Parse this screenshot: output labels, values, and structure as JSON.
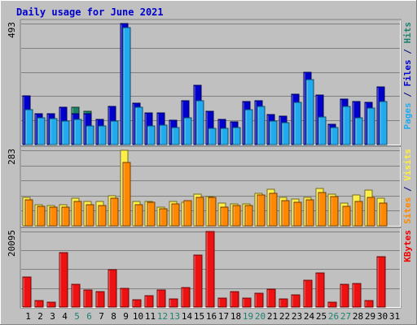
{
  "chart_data": {
    "type": "bar",
    "title": "Daily usage for June 2021",
    "days": [
      "1",
      "2",
      "3",
      "4",
      "5",
      "6",
      "7",
      "8",
      "9",
      "10",
      "11",
      "12",
      "13",
      "14",
      "15",
      "16",
      "17",
      "18",
      "19",
      "20",
      "21",
      "22",
      "23",
      "24",
      "25",
      "26",
      "27",
      "28",
      "29",
      "30",
      "31"
    ],
    "weekend_days": [
      "5",
      "6",
      "12",
      "13",
      "19",
      "20",
      "26",
      "27"
    ],
    "panels": [
      {
        "id": "pages-files-hits",
        "max_label": "493",
        "ylim": [
          0,
          493
        ],
        "grid_values": [
          99,
          197,
          296,
          394,
          493
        ],
        "right_label": [
          {
            "text": "Pages",
            "color": "#22aaee"
          },
          {
            "text": " / ",
            "color": "#000080"
          },
          {
            "text": "Files",
            "color": "#0000cc"
          },
          {
            "text": " / ",
            "color": "#000080"
          },
          {
            "text": "Hits",
            "color": "#208070"
          }
        ],
        "series": [
          {
            "name": "Hits",
            "color": "#1c8064",
            "values": [
              198,
              125,
              127,
              151,
              151,
              135,
              103,
              155,
              493,
              170,
              128,
              128,
              98,
              178,
              240,
              135,
              102,
              94,
              174,
              179,
              124,
              116,
              205,
              293,
              202,
              82,
              186,
              174,
              171,
              236,
              0
            ]
          },
          {
            "name": "Files",
            "color": "#0000cc",
            "values": [
              198,
              125,
              127,
              151,
              127,
              126,
              103,
              155,
              493,
              170,
              128,
              128,
              98,
              178,
              240,
              135,
              102,
              94,
              174,
              179,
              124,
              116,
              205,
              293,
              202,
              82,
              186,
              174,
              171,
              236,
              0
            ]
          },
          {
            "name": "Pages",
            "color": "#22aaee",
            "values": [
              142,
              108,
              106,
              97,
              102,
              75,
              77,
              95,
              475,
              151,
              76,
              81,
              70,
              109,
              178,
              67,
              67,
              70,
              143,
              156,
              97,
              88,
              172,
              265,
              112,
              70,
              155,
              109,
              150,
              175,
              0
            ]
          }
        ]
      },
      {
        "id": "visits-sites",
        "max_label": "283",
        "ylim": [
          0,
          283
        ],
        "grid_values": [
          57,
          113,
          170,
          226,
          283
        ],
        "right_label": [
          {
            "text": "Sites",
            "color": "#ff8800"
          },
          {
            "text": " / ",
            "color": "#000080"
          },
          {
            "text": "Visits",
            "color": "#ffee44"
          }
        ],
        "series": [
          {
            "name": "Visits",
            "color": "#ffee44",
            "values": [
              106,
              80,
              77,
              80,
              103,
              91,
              90,
              112,
              283,
              90,
              92,
              70,
              90,
              88,
              118,
              110,
              84,
              83,
              81,
              123,
              136,
              106,
              100,
              106,
              140,
              118,
              85,
              117,
              133,
              103,
              0
            ]
          },
          {
            "name": "Sites",
            "color": "#ff8800",
            "values": [
              96,
              74,
              70,
              70,
              92,
              79,
              76,
              102,
              237,
              80,
              88,
              65,
              83,
              93,
              107,
              107,
              70,
              77,
              77,
              116,
              121,
              95,
              89,
              96,
              126,
              111,
              74,
              91,
              106,
              84,
              0
            ]
          }
        ]
      },
      {
        "id": "kbytes",
        "max_label": "20095",
        "ylim": [
          0,
          20095
        ],
        "grid_values": [
          5024,
          10048,
          15071,
          20095
        ],
        "right_label": [
          {
            "text": "KBytes",
            "color": "#ee0000"
          }
        ],
        "series": [
          {
            "name": "KBytes",
            "color": "#ee1111",
            "values": [
              7900,
              1800,
              1400,
              14400,
              6100,
              4600,
              4000,
              10000,
              4900,
              1900,
              3000,
              4600,
              2100,
              5100,
              13800,
              20095,
              2300,
              4000,
              2300,
              3600,
              4700,
              2200,
              3200,
              7200,
              9100,
              1200,
              6000,
              6300,
              1700,
              13300,
              0
            ]
          }
        ]
      }
    ]
  }
}
